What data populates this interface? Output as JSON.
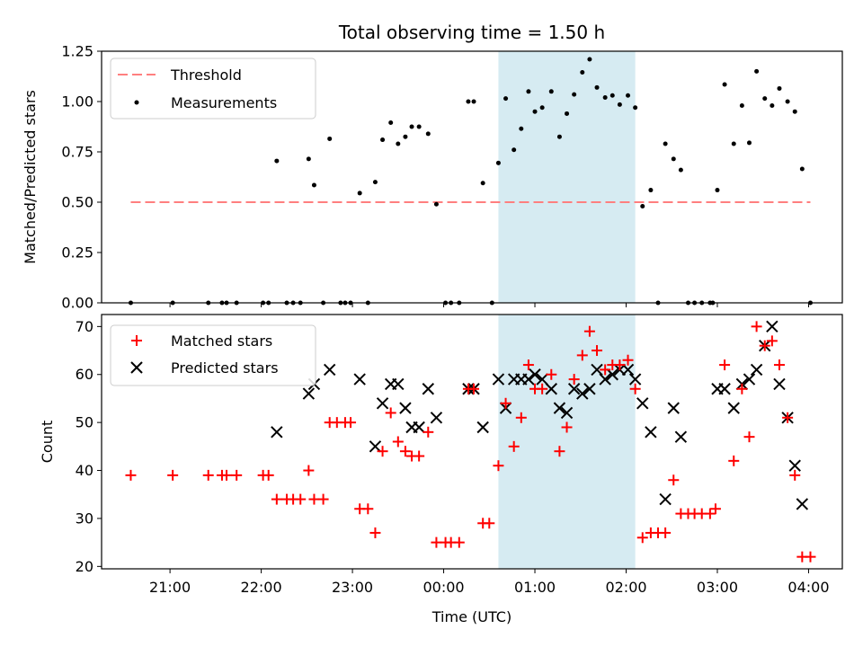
{
  "chart_data": {
    "type": "scatter",
    "title": "Total observing time = 1.50 h",
    "xlabel": "Time (UTC)",
    "x_ticks": [
      "21:00",
      "22:00",
      "23:00",
      "00:00",
      "01:00",
      "02:00",
      "03:00",
      "04:00"
    ],
    "x_tick_hours": [
      21,
      22,
      23,
      24,
      25,
      26,
      27,
      28
    ],
    "xlim": [
      20.25,
      28.37
    ],
    "shaded_span": [
      24.6,
      26.1
    ],
    "shade_color": "#add8e6",
    "panels": [
      {
        "ylabel": "Matched/Predicted stars",
        "ylim": [
          0,
          1.25
        ],
        "y_ticks": [
          "0.00",
          "0.25",
          "0.50",
          "0.75",
          "1.00",
          "1.25"
        ],
        "y_tick_values": [
          0,
          0.25,
          0.5,
          0.75,
          1.0,
          1.25
        ],
        "threshold": 0.5,
        "threshold_color": "#ff7f7f",
        "legend": [
          "Threshold",
          "Measurements"
        ],
        "measurements": [
          [
            20.57,
            0
          ],
          [
            21.03,
            0
          ],
          [
            21.42,
            0
          ],
          [
            21.57,
            0
          ],
          [
            21.62,
            0
          ],
          [
            21.73,
            0
          ],
          [
            22.02,
            0
          ],
          [
            22.08,
            0
          ],
          [
            22.17,
            0.705
          ],
          [
            22.28,
            0
          ],
          [
            22.35,
            0
          ],
          [
            22.43,
            0
          ],
          [
            22.52,
            0.715
          ],
          [
            22.58,
            0.585
          ],
          [
            22.68,
            0
          ],
          [
            22.75,
            0.815
          ],
          [
            22.87,
            0
          ],
          [
            22.92,
            0
          ],
          [
            22.98,
            0
          ],
          [
            23.08,
            0.545
          ],
          [
            23.17,
            0
          ],
          [
            23.25,
            0.6
          ],
          [
            23.33,
            0.81
          ],
          [
            23.42,
            0.895
          ],
          [
            23.5,
            0.79
          ],
          [
            23.58,
            0.825
          ],
          [
            23.65,
            0.875
          ],
          [
            23.73,
            0.875
          ],
          [
            23.83,
            0.84
          ],
          [
            23.92,
            0.49
          ],
          [
            24.02,
            0
          ],
          [
            24.08,
            0
          ],
          [
            24.17,
            0
          ],
          [
            24.27,
            1.0
          ],
          [
            24.33,
            1.0
          ],
          [
            24.43,
            0.595
          ],
          [
            24.53,
            0
          ],
          [
            24.6,
            0.695
          ],
          [
            24.68,
            1.015
          ],
          [
            24.77,
            0.76
          ],
          [
            24.85,
            0.865
          ],
          [
            24.93,
            1.05
          ],
          [
            25.0,
            0.95
          ],
          [
            25.08,
            0.97
          ],
          [
            25.18,
            1.05
          ],
          [
            25.27,
            0.825
          ],
          [
            25.35,
            0.94
          ],
          [
            25.43,
            1.035
          ],
          [
            25.52,
            1.145
          ],
          [
            25.6,
            1.21
          ],
          [
            25.68,
            1.07
          ],
          [
            25.77,
            1.02
          ],
          [
            25.85,
            1.03
          ],
          [
            25.93,
            0.985
          ],
          [
            26.02,
            1.03
          ],
          [
            26.1,
            0.97
          ],
          [
            26.18,
            0.48
          ],
          [
            26.27,
            0.56
          ],
          [
            26.35,
            0
          ],
          [
            26.43,
            0.79
          ],
          [
            26.52,
            0.715
          ],
          [
            26.6,
            0.66
          ],
          [
            26.68,
            0
          ],
          [
            26.75,
            0
          ],
          [
            26.83,
            0
          ],
          [
            26.92,
            0
          ],
          [
            26.95,
            0
          ],
          [
            27.0,
            0.56
          ],
          [
            27.08,
            1.085
          ],
          [
            27.18,
            0.79
          ],
          [
            27.27,
            0.98
          ],
          [
            27.35,
            0.795
          ],
          [
            27.43,
            1.15
          ],
          [
            27.52,
            1.015
          ],
          [
            27.6,
            0.98
          ],
          [
            27.68,
            1.065
          ],
          [
            27.77,
            1.0
          ],
          [
            27.85,
            0.95
          ],
          [
            27.93,
            0.665
          ],
          [
            28.02,
            0
          ]
        ]
      },
      {
        "ylabel": "Count",
        "ylim": [
          19.5,
          72.5
        ],
        "y_ticks": [
          "20",
          "30",
          "40",
          "50",
          "60",
          "70"
        ],
        "y_tick_values": [
          20,
          30,
          40,
          50,
          60,
          70
        ],
        "legend": [
          "Matched stars",
          "Predicted stars"
        ],
        "matched": [
          [
            20.57,
            39
          ],
          [
            21.03,
            39
          ],
          [
            21.42,
            39
          ],
          [
            21.57,
            39
          ],
          [
            21.62,
            39
          ],
          [
            21.73,
            39
          ],
          [
            22.02,
            39
          ],
          [
            22.08,
            39
          ],
          [
            22.17,
            34
          ],
          [
            22.28,
            34
          ],
          [
            22.35,
            34
          ],
          [
            22.43,
            34
          ],
          [
            22.52,
            40
          ],
          [
            22.58,
            34
          ],
          [
            22.68,
            34
          ],
          [
            22.75,
            50
          ],
          [
            22.83,
            50
          ],
          [
            22.92,
            50
          ],
          [
            22.98,
            50
          ],
          [
            23.08,
            32
          ],
          [
            23.17,
            32
          ],
          [
            23.25,
            27
          ],
          [
            23.33,
            44
          ],
          [
            23.42,
            52
          ],
          [
            23.5,
            46
          ],
          [
            23.58,
            44
          ],
          [
            23.65,
            43
          ],
          [
            23.73,
            43
          ],
          [
            23.83,
            48
          ],
          [
            23.92,
            25
          ],
          [
            24.02,
            25
          ],
          [
            24.08,
            25
          ],
          [
            24.17,
            25
          ],
          [
            24.27,
            57
          ],
          [
            24.33,
            57
          ],
          [
            24.43,
            29
          ],
          [
            24.5,
            29
          ],
          [
            24.6,
            41
          ],
          [
            24.68,
            54
          ],
          [
            24.77,
            45
          ],
          [
            24.85,
            51
          ],
          [
            24.93,
            62
          ],
          [
            25.0,
            57
          ],
          [
            25.08,
            57
          ],
          [
            25.18,
            60
          ],
          [
            25.27,
            44
          ],
          [
            25.35,
            49
          ],
          [
            25.43,
            59
          ],
          [
            25.52,
            64
          ],
          [
            25.6,
            69
          ],
          [
            25.68,
            65
          ],
          [
            25.77,
            61
          ],
          [
            25.85,
            62
          ],
          [
            25.93,
            62
          ],
          [
            26.02,
            63
          ],
          [
            26.1,
            57
          ],
          [
            26.18,
            26
          ],
          [
            26.27,
            27
          ],
          [
            26.35,
            27
          ],
          [
            26.43,
            27
          ],
          [
            26.52,
            38
          ],
          [
            26.6,
            31
          ],
          [
            26.68,
            31
          ],
          [
            26.75,
            31
          ],
          [
            26.83,
            31
          ],
          [
            26.92,
            31
          ],
          [
            26.98,
            32
          ],
          [
            27.08,
            62
          ],
          [
            27.18,
            42
          ],
          [
            27.27,
            57
          ],
          [
            27.35,
            47
          ],
          [
            27.43,
            70
          ],
          [
            27.52,
            66
          ],
          [
            27.6,
            67
          ],
          [
            27.68,
            62
          ],
          [
            27.77,
            51
          ],
          [
            27.85,
            39
          ],
          [
            27.93,
            22
          ],
          [
            28.02,
            22
          ]
        ],
        "predicted": [
          [
            22.17,
            48
          ],
          [
            22.52,
            56
          ],
          [
            22.58,
            58
          ],
          [
            22.75,
            61
          ],
          [
            23.08,
            59
          ],
          [
            23.25,
            45
          ],
          [
            23.33,
            54
          ],
          [
            23.42,
            58
          ],
          [
            23.5,
            58
          ],
          [
            23.58,
            53
          ],
          [
            23.65,
            49
          ],
          [
            23.73,
            49
          ],
          [
            23.83,
            57
          ],
          [
            23.92,
            51
          ],
          [
            24.27,
            57
          ],
          [
            24.33,
            57
          ],
          [
            24.43,
            49
          ],
          [
            24.6,
            59
          ],
          [
            24.68,
            53
          ],
          [
            24.77,
            59
          ],
          [
            24.85,
            59
          ],
          [
            24.93,
            59
          ],
          [
            25.0,
            60
          ],
          [
            25.08,
            59
          ],
          [
            25.18,
            57
          ],
          [
            25.27,
            53
          ],
          [
            25.35,
            52
          ],
          [
            25.43,
            57
          ],
          [
            25.52,
            56
          ],
          [
            25.6,
            57
          ],
          [
            25.68,
            61
          ],
          [
            25.77,
            59
          ],
          [
            25.85,
            60
          ],
          [
            25.93,
            61
          ],
          [
            26.02,
            61
          ],
          [
            26.1,
            59
          ],
          [
            26.18,
            54
          ],
          [
            26.27,
            48
          ],
          [
            26.43,
            34
          ],
          [
            26.52,
            53
          ],
          [
            26.6,
            47
          ],
          [
            27.0,
            57
          ],
          [
            27.08,
            57
          ],
          [
            27.18,
            53
          ],
          [
            27.27,
            58
          ],
          [
            27.35,
            59
          ],
          [
            27.43,
            61
          ],
          [
            27.52,
            66
          ],
          [
            27.6,
            70
          ],
          [
            27.68,
            58
          ],
          [
            27.77,
            51
          ],
          [
            27.85,
            41
          ],
          [
            27.93,
            33
          ]
        ]
      }
    ]
  }
}
